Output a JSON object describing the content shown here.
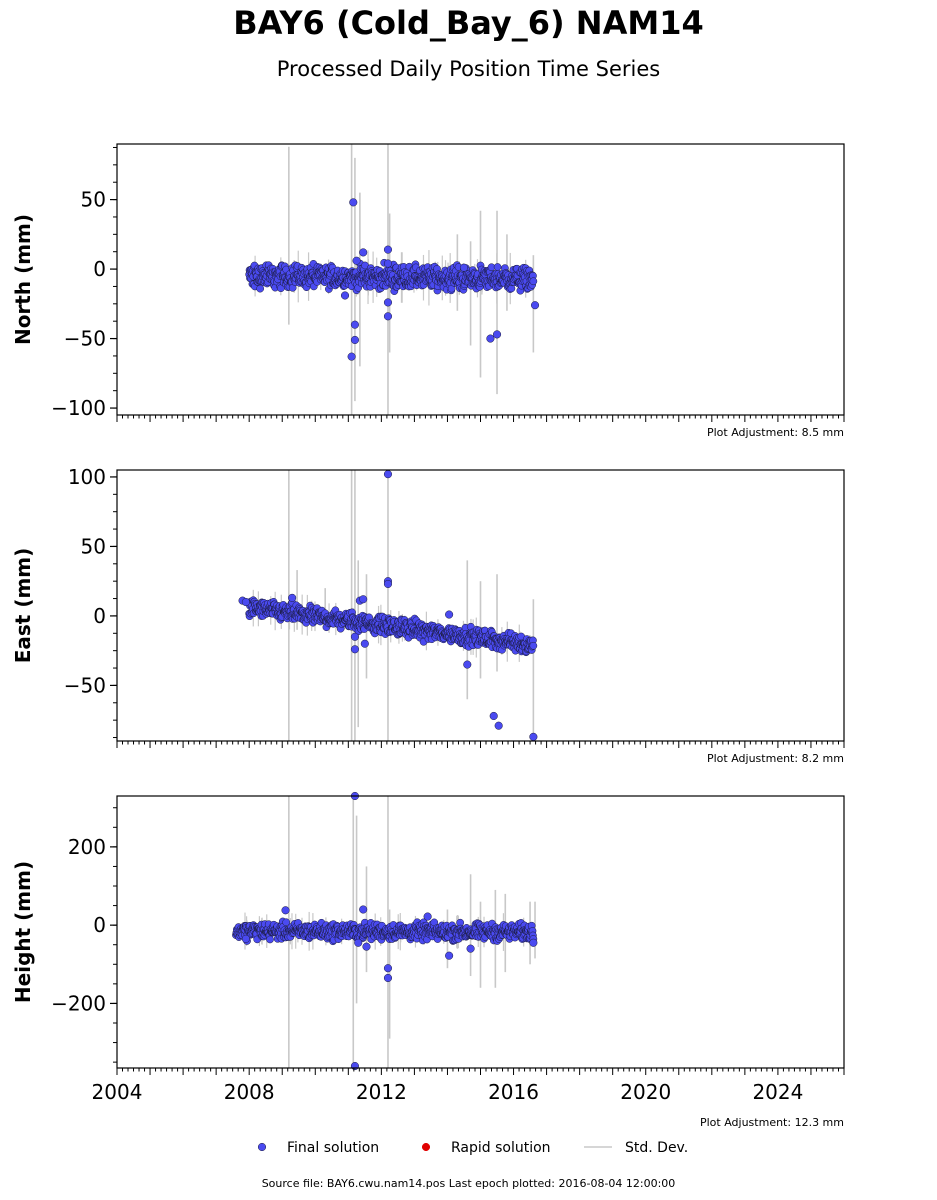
{
  "title": "BAY6 (Cold_Bay_6) NAM14",
  "subtitle": "Processed Daily Position Time Series",
  "footer": "Source file: BAY6.cwu.nam14.pos  Last epoch plotted: 2016-08-04 12:00:00",
  "colors": {
    "final": "#4a4af0",
    "rapid": "#e00000",
    "stddev": "#c8c8c8"
  },
  "chart_data": {
    "type": "scatter",
    "xlim": [
      2004,
      2026
    ],
    "x_ticks": [
      "2004",
      "2008",
      "2012",
      "2016",
      "2020",
      "2024"
    ],
    "legend": {
      "placement": "bottom-center",
      "items": [
        {
          "label": "Final solution",
          "kind": "dot",
          "color": "#4a4af0"
        },
        {
          "label": "Rapid solution",
          "kind": "dot",
          "color": "#e00000"
        },
        {
          "label": "Std. Dev.",
          "kind": "line",
          "color": "#c8c8c8"
        }
      ]
    },
    "panels": [
      {
        "ylabel": "North (mm)",
        "ylim": [
          -105,
          90
        ],
        "y_ticks": [
          -100,
          -50,
          0,
          50
        ],
        "y_tick_labels": [
          "−100",
          "−50",
          "0",
          "50"
        ],
        "adjustment": "Plot Adjustment: 8.5 mm",
        "trend": {
          "start": [
            2008,
            -5
          ],
          "end": [
            2016.6,
            -7
          ]
        },
        "scatter": 4,
        "outliers": [
          [
            2011.15,
            48
          ],
          [
            2011.2,
            -40
          ],
          [
            2011.2,
            -51
          ],
          [
            2011.1,
            -63
          ],
          [
            2011.25,
            6
          ],
          [
            2011.45,
            12
          ],
          [
            2012.2,
            14
          ],
          [
            2012.2,
            4
          ],
          [
            2012.2,
            -24
          ],
          [
            2012.2,
            -34
          ],
          [
            2015.3,
            -50
          ],
          [
            2015.5,
            -47
          ],
          [
            2016.65,
            -26
          ],
          [
            2014.5,
            1
          ],
          [
            2010.9,
            -19
          ]
        ],
        "errorbars": [
          [
            2009.2,
            -40,
            88
          ],
          [
            2011.1,
            -105,
            90
          ],
          [
            2011.2,
            -95,
            80
          ],
          [
            2011.35,
            -70,
            55
          ],
          [
            2012.2,
            -105,
            90
          ],
          [
            2012.25,
            -60,
            40
          ],
          [
            2014.7,
            -55,
            20
          ],
          [
            2015.0,
            -78,
            42
          ],
          [
            2015.5,
            -90,
            42
          ],
          [
            2015.8,
            -30,
            25
          ],
          [
            2016.6,
            -60,
            10
          ],
          [
            2014.3,
            -30,
            25
          ]
        ]
      },
      {
        "ylabel": "East (mm)",
        "ylim": [
          -90,
          105
        ],
        "y_ticks": [
          -50,
          0,
          50,
          100
        ],
        "y_tick_labels": [
          "−50",
          "0",
          "50",
          "100"
        ],
        "adjustment": "Plot Adjustment: 8.2 mm",
        "trend": {
          "start": [
            2008,
            6
          ],
          "end": [
            2016.6,
            -21
          ]
        },
        "scatter": 3,
        "outliers": [
          [
            2007.8,
            11
          ],
          [
            2007.9,
            10
          ],
          [
            2009.3,
            13
          ],
          [
            2011.2,
            -24
          ],
          [
            2011.35,
            11
          ],
          [
            2011.45,
            12
          ],
          [
            2011.5,
            -20
          ],
          [
            2012.2,
            102
          ],
          [
            2012.2,
            25
          ],
          [
            2012.2,
            23
          ],
          [
            2014.05,
            1
          ],
          [
            2014.6,
            -35
          ],
          [
            2015.4,
            -72
          ],
          [
            2015.55,
            -79
          ],
          [
            2016.6,
            -87
          ],
          [
            2011.2,
            -15
          ]
        ],
        "errorbars": [
          [
            2009.2,
            -90,
            105
          ],
          [
            2011.1,
            -90,
            105
          ],
          [
            2011.2,
            -90,
            105
          ],
          [
            2011.3,
            -80,
            40
          ],
          [
            2011.55,
            -45,
            30
          ],
          [
            2012.2,
            -90,
            105
          ],
          [
            2014.6,
            -60,
            40
          ],
          [
            2015.0,
            -45,
            25
          ],
          [
            2015.5,
            -40,
            30
          ],
          [
            2016.6,
            -90,
            12
          ],
          [
            2009.45,
            -10,
            33
          ],
          [
            2010.3,
            -10,
            20
          ]
        ]
      },
      {
        "ylabel": "Height (mm)",
        "ylim": [
          -365,
          330
        ],
        "y_ticks": [
          -200,
          0,
          200
        ],
        "y_tick_labels": [
          "−200",
          "0",
          "200"
        ],
        "adjustment": "Plot Adjustment: 12.3 mm",
        "trend": {
          "start": [
            2007.6,
            -15
          ],
          "end": [
            2016.6,
            -18
          ]
        },
        "scatter": 10,
        "outliers": [
          [
            2009.1,
            38
          ],
          [
            2011.2,
            330
          ],
          [
            2011.2,
            -360
          ],
          [
            2011.3,
            -45
          ],
          [
            2011.45,
            40
          ],
          [
            2011.55,
            -55
          ],
          [
            2012.2,
            -110
          ],
          [
            2012.2,
            -135
          ],
          [
            2013.4,
            22
          ],
          [
            2014.05,
            -78
          ],
          [
            2014.7,
            -60
          ],
          [
            2016.6,
            -45
          ],
          [
            2007.9,
            -35
          ]
        ],
        "errorbars": [
          [
            2009.2,
            -365,
            330
          ],
          [
            2011.15,
            -365,
            330
          ],
          [
            2011.25,
            -200,
            280
          ],
          [
            2011.55,
            -120,
            150
          ],
          [
            2012.2,
            -365,
            330
          ],
          [
            2012.25,
            -290,
            40
          ],
          [
            2014.0,
            -110,
            40
          ],
          [
            2014.7,
            -130,
            130
          ],
          [
            2015.0,
            -160,
            60
          ],
          [
            2015.45,
            -160,
            90
          ],
          [
            2015.75,
            -120,
            80
          ],
          [
            2016.5,
            -100,
            60
          ],
          [
            2016.65,
            -85,
            60
          ]
        ]
      }
    ]
  }
}
